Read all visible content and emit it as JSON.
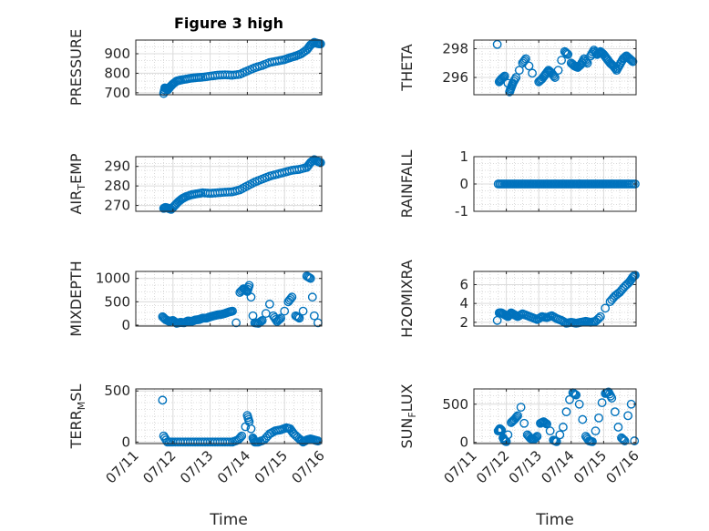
{
  "figure": {
    "title": "Figure 3 high"
  },
  "chart_data": [
    {
      "id": "pressure",
      "type": "scatter",
      "title": "Figure 3 high",
      "ylabel": "PRESSURE",
      "xlabel": "",
      "xlim": [
        0,
        5
      ],
      "ylim": [
        690,
        970
      ],
      "yticks": [
        700,
        800,
        900
      ],
      "ytick_labels": [
        "700",
        "800",
        "900"
      ],
      "xticks": [],
      "xtick_labels": [],
      "x": [
        0.75,
        0.78,
        0.82,
        0.86,
        0.92,
        1.0,
        1.1,
        1.2,
        1.35,
        1.5,
        1.65,
        1.8,
        2.0,
        2.2,
        2.4,
        2.6,
        2.8,
        3.0,
        3.2,
        3.4,
        3.6,
        3.8,
        4.0,
        4.15,
        4.3,
        4.45,
        4.6,
        4.7,
        4.8,
        4.9,
        4.97
      ],
      "y": [
        696,
        725,
        722,
        715,
        730,
        745,
        760,
        765,
        770,
        775,
        778,
        780,
        785,
        790,
        792,
        790,
        795,
        812,
        828,
        840,
        855,
        862,
        870,
        880,
        888,
        900,
        920,
        945,
        958,
        952,
        950
      ]
    },
    {
      "id": "theta",
      "type": "scatter",
      "title": "",
      "ylabel": "THETA",
      "xlabel": "",
      "xlim": [
        0,
        5
      ],
      "ylim": [
        294.8,
        298.6
      ],
      "yticks": [
        296,
        298
      ],
      "ytick_labels": [
        "296",
        "298"
      ],
      "xticks": [],
      "xtick_labels": [],
      "x": [
        0.72,
        0.78,
        0.85,
        0.95,
        1.05,
        1.1,
        1.15,
        1.2,
        1.3,
        1.4,
        1.5,
        1.6,
        1.7,
        1.8,
        2.0,
        2.1,
        2.2,
        2.3,
        2.4,
        2.5,
        2.6,
        2.7,
        2.8,
        2.9,
        3.0,
        3.1,
        3.2,
        3.3,
        3.4,
        3.5,
        3.6,
        3.7,
        3.8,
        3.9,
        4.0,
        4.1,
        4.2,
        4.3,
        4.4,
        4.5,
        4.6,
        4.7,
        4.8,
        4.9
      ],
      "y": [
        298.3,
        295.7,
        295.9,
        296.1,
        295.6,
        295.0,
        295.3,
        295.6,
        296.0,
        296.5,
        297.0,
        297.3,
        296.8,
        296.3,
        295.7,
        295.9,
        296.2,
        296.5,
        296.3,
        296.0,
        296.5,
        297.2,
        297.8,
        297.6,
        297.0,
        296.8,
        296.7,
        296.9,
        297.3,
        297.0,
        297.5,
        297.9,
        297.6,
        297.8,
        297.6,
        297.3,
        297.0,
        296.8,
        296.5,
        296.9,
        297.3,
        297.5,
        297.3,
        297.1
      ]
    },
    {
      "id": "air_temp",
      "type": "scatter",
      "title": "",
      "ylabel": "AIR_TEMP",
      "xlabel": "",
      "xlim": [
        0,
        5
      ],
      "ylim": [
        267,
        295
      ],
      "yticks": [
        270,
        280,
        290
      ],
      "ytick_labels": [
        "270",
        "280",
        "290"
      ],
      "xticks": [],
      "xtick_labels": [],
      "x": [
        0.75,
        0.8,
        0.88,
        0.95,
        1.05,
        1.15,
        1.25,
        1.35,
        1.5,
        1.65,
        1.8,
        2.0,
        2.2,
        2.4,
        2.6,
        2.8,
        3.0,
        3.2,
        3.4,
        3.6,
        3.8,
        4.0,
        4.2,
        4.4,
        4.6,
        4.7,
        4.8,
        4.9,
        4.97
      ],
      "y": [
        268.5,
        269,
        268.5,
        268,
        270,
        272,
        273.5,
        274.5,
        275.5,
        276,
        276.5,
        276.2,
        276.5,
        276.8,
        277,
        278,
        280,
        282,
        283.5,
        285,
        286,
        287,
        288,
        288.5,
        289.5,
        292,
        293.5,
        292.5,
        292
      ]
    },
    {
      "id": "rainfall",
      "type": "scatter",
      "title": "",
      "ylabel": "RAINFALL",
      "xlabel": "",
      "xlim": [
        0,
        5
      ],
      "ylim": [
        -1,
        1
      ],
      "yticks": [
        -1,
        0,
        1
      ],
      "ytick_labels": [
        "-1",
        "0",
        "1"
      ],
      "xticks": [],
      "xtick_labels": [],
      "x": [
        0.75,
        0.9,
        1.05,
        1.2,
        1.35,
        1.5,
        1.65,
        1.8,
        1.95,
        2.1,
        2.25,
        2.4,
        2.55,
        2.7,
        2.85,
        3.0,
        3.15,
        3.3,
        3.45,
        3.6,
        3.75,
        3.9,
        4.05,
        4.2,
        4.35,
        4.5,
        4.65,
        4.8,
        4.97
      ],
      "y": [
        0,
        0,
        0,
        0,
        0,
        0,
        0,
        0,
        0,
        0,
        0,
        0,
        0,
        0,
        0,
        0,
        0,
        0,
        0,
        0,
        0,
        0,
        0,
        0,
        0,
        0,
        0,
        0,
        0
      ]
    },
    {
      "id": "mixdepth",
      "type": "scatter",
      "title": "",
      "ylabel": "MIXDEPTH",
      "xlabel": "",
      "xlim": [
        0,
        5
      ],
      "ylim": [
        -20,
        1150
      ],
      "yticks": [
        0,
        500,
        1000
      ],
      "ytick_labels": [
        "0",
        "500",
        "1000"
      ],
      "xticks": [],
      "xtick_labels": [],
      "x": [
        0.72,
        0.8,
        0.9,
        1.0,
        1.1,
        1.2,
        1.3,
        1.4,
        1.5,
        1.6,
        1.7,
        1.8,
        1.9,
        2.0,
        2.1,
        2.2,
        2.3,
        2.4,
        2.5,
        2.6,
        2.7,
        2.8,
        2.9,
        3.0,
        3.05,
        3.1,
        3.15,
        3.2,
        3.3,
        3.4,
        3.5,
        3.6,
        3.7,
        3.8,
        3.9,
        4.0,
        4.1,
        4.2,
        4.3,
        4.4,
        4.5,
        4.6,
        4.7,
        4.75,
        4.8,
        4.9
      ],
      "y": [
        180,
        120,
        80,
        100,
        40,
        60,
        50,
        90,
        80,
        110,
        120,
        150,
        150,
        180,
        200,
        220,
        230,
        250,
        280,
        300,
        50,
        700,
        780,
        720,
        850,
        600,
        200,
        50,
        40,
        100,
        250,
        450,
        200,
        80,
        150,
        300,
        500,
        600,
        200,
        150,
        300,
        1050,
        1000,
        600,
        200,
        50
      ]
    },
    {
      "id": "h2omixra",
      "type": "scatter",
      "title": "",
      "ylabel": "H2OMIXRA",
      "xlabel": "",
      "xlim": [
        0,
        5
      ],
      "ylim": [
        1.6,
        7.4
      ],
      "yticks": [
        2,
        4,
        6
      ],
      "ytick_labels": [
        "2",
        "4",
        "6"
      ],
      "xticks": [],
      "xtick_labels": [],
      "x": [
        0.72,
        0.78,
        0.85,
        0.95,
        1.05,
        1.15,
        1.25,
        1.35,
        1.5,
        1.65,
        1.8,
        1.95,
        2.1,
        2.25,
        2.4,
        2.55,
        2.7,
        2.85,
        3.0,
        3.15,
        3.3,
        3.45,
        3.6,
        3.75,
        3.9,
        4.05,
        4.2,
        4.35,
        4.5,
        4.65,
        4.8,
        4.9,
        4.97
      ],
      "y": [
        2.2,
        3.0,
        3.0,
        2.8,
        2.6,
        3.0,
        2.8,
        2.6,
        2.9,
        2.7,
        2.5,
        2.3,
        2.6,
        2.5,
        2.7,
        2.4,
        2.2,
        1.9,
        2.0,
        1.9,
        2.0,
        2.1,
        2.0,
        2.1,
        2.6,
        3.5,
        4.2,
        4.8,
        5.2,
        5.8,
        6.3,
        6.8,
        7.0
      ]
    },
    {
      "id": "terr_msl",
      "type": "scatter",
      "title": "",
      "ylabel": "TERR_MSL",
      "xlabel": "Time",
      "xlim": [
        0,
        5
      ],
      "ylim": [
        -15,
        520
      ],
      "yticks": [
        0,
        500
      ],
      "ytick_labels": [
        "0",
        "500"
      ],
      "xticks": [
        0,
        1,
        2,
        3,
        4,
        5
      ],
      "xtick_labels": [
        "07/11",
        "07/12",
        "07/13",
        "07/14",
        "07/15",
        "07/16"
      ],
      "x": [
        0.72,
        0.75,
        0.85,
        1.0,
        1.2,
        1.4,
        1.6,
        1.8,
        2.0,
        2.2,
        2.4,
        2.6,
        2.75,
        2.85,
        2.95,
        3.0,
        3.05,
        3.1,
        3.15,
        3.2,
        3.3,
        3.45,
        3.6,
        3.75,
        3.9,
        4.05,
        4.15,
        4.25,
        4.4,
        4.5,
        4.6,
        4.7,
        4.8,
        4.9
      ],
      "y": [
        410,
        60,
        0,
        0,
        0,
        0,
        0,
        0,
        0,
        0,
        0,
        0,
        20,
        60,
        150,
        260,
        200,
        130,
        40,
        0,
        0,
        20,
        80,
        110,
        120,
        140,
        130,
        80,
        30,
        0,
        20,
        30,
        20,
        10
      ]
    },
    {
      "id": "sun_flux",
      "type": "scatter",
      "title": "",
      "ylabel": "SUN_FLUX",
      "xlabel": "Time",
      "xlim": [
        0,
        5
      ],
      "ylim": [
        -15,
        700
      ],
      "yticks": [
        0,
        500
      ],
      "ytick_labels": [
        "0",
        "500"
      ],
      "xticks": [
        0,
        1,
        2,
        3,
        4,
        5
      ],
      "xtick_labels": [
        "07/11",
        "07/12",
        "07/13",
        "07/14",
        "07/15",
        "07/16"
      ],
      "x": [
        0.75,
        0.8,
        0.85,
        0.9,
        0.95,
        1.0,
        1.05,
        1.15,
        1.25,
        1.35,
        1.45,
        1.55,
        1.65,
        1.75,
        1.85,
        1.95,
        2.05,
        2.15,
        2.25,
        2.35,
        2.45,
        2.55,
        2.65,
        2.75,
        2.85,
        2.95,
        3.05,
        3.15,
        3.25,
        3.35,
        3.45,
        3.55,
        3.65,
        3.75,
        3.85,
        3.95,
        4.05,
        4.15,
        4.25,
        4.35,
        4.45,
        4.55,
        4.65,
        4.75,
        4.85,
        4.95
      ],
      "y": [
        150,
        180,
        160,
        60,
        20,
        10,
        100,
        260,
        300,
        350,
        460,
        250,
        100,
        50,
        40,
        80,
        250,
        270,
        240,
        150,
        30,
        10,
        100,
        200,
        400,
        560,
        650,
        620,
        500,
        300,
        80,
        20,
        10,
        150,
        320,
        520,
        640,
        660,
        580,
        400,
        200,
        60,
        20,
        350,
        500,
        20
      ]
    }
  ]
}
